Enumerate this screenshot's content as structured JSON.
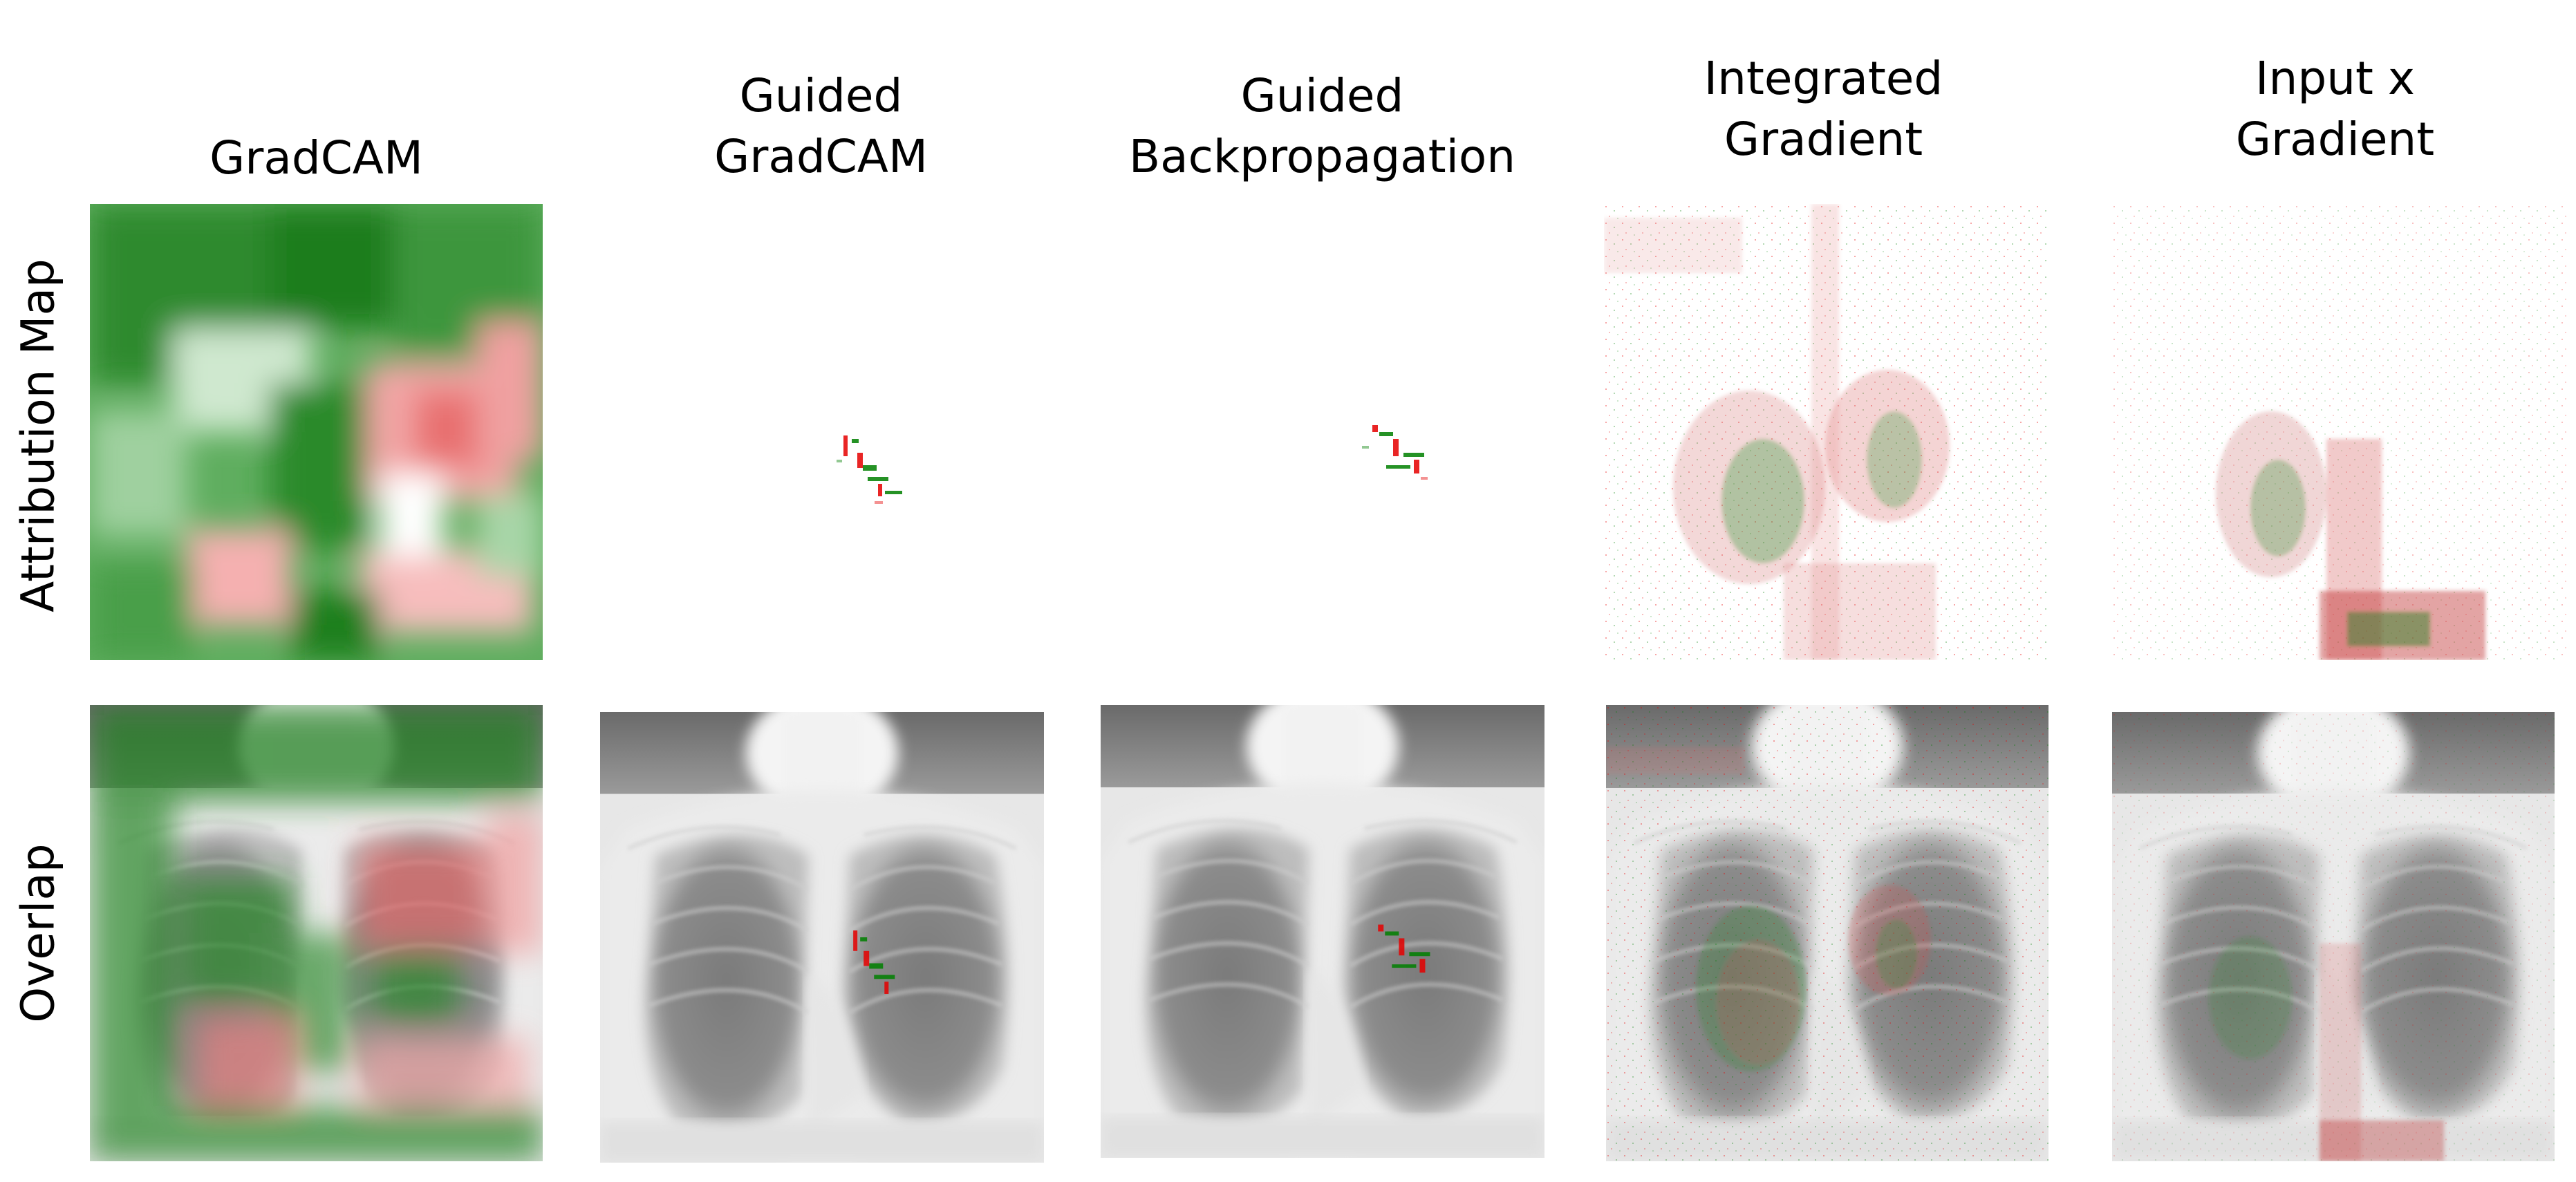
{
  "columns": [
    {
      "key": "gradcam",
      "title": "GradCAM"
    },
    {
      "key": "guided-gradcam",
      "title": "Guided\nGradCAM"
    },
    {
      "key": "guided-backprop",
      "title": "Guided\nBackpropagation"
    },
    {
      "key": "integrated-gradient",
      "title": "Integrated\nGradient"
    },
    {
      "key": "input-x-gradient",
      "title": "Input x\nGradient"
    }
  ],
  "rows": [
    {
      "key": "attribution-map",
      "label": "Attribution Map"
    },
    {
      "key": "overlap",
      "label": "Overlap"
    }
  ],
  "colors": {
    "positive": "#008000",
    "negative": "#e60000",
    "background": "#ffffff",
    "xray_dark": "#5a5a5a",
    "xray_light": "#f2f2f2"
  }
}
